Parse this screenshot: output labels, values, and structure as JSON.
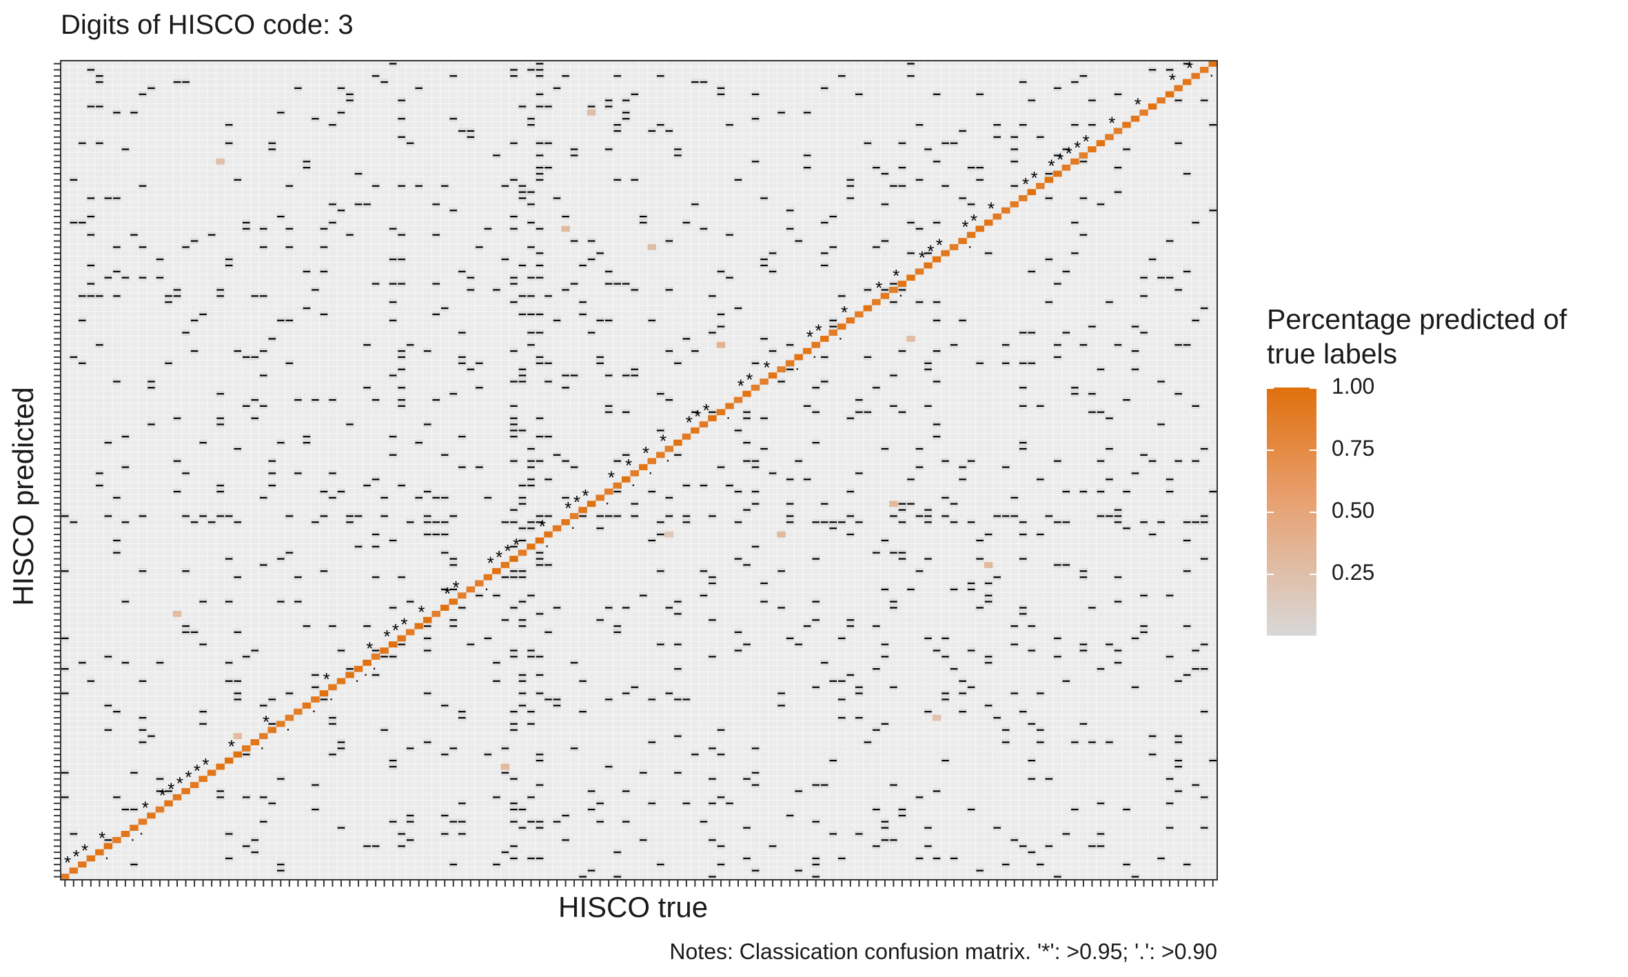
{
  "chart_data": {
    "type": "heatmap",
    "title": "Digits of HISCO code: 3",
    "xlabel": "HISCO true",
    "ylabel": "HISCO predicted",
    "notes": "Notes: Classication confusion matrix. '*': >0.95; '.': >0.90",
    "n_classes": 134,
    "tick_labels_shown": false,
    "legend": {
      "title_line1": "Percentage predicted of",
      "title_line2": "true labels",
      "ticks": [
        "1.00",
        "0.75",
        "0.50",
        "0.25"
      ],
      "tick_values": [
        1.0,
        0.75,
        0.5,
        0.25
      ],
      "color_low": "#D8D8D8",
      "color_mid": "#E8A070",
      "color_high": "#E0700D",
      "placement": "right"
    },
    "diagonal_value_range": [
      0.85,
      1.0
    ],
    "star_threshold": 0.95,
    "dot_threshold": 0.9,
    "off_diagonal": "sparse near-zero values (most cells 0), scattered small misclassifications"
  },
  "colors": {
    "background_cell": "#EBEBEB",
    "grid_line": "#F6F6F6",
    "panel_border": "#333333",
    "marker": "#000000"
  }
}
